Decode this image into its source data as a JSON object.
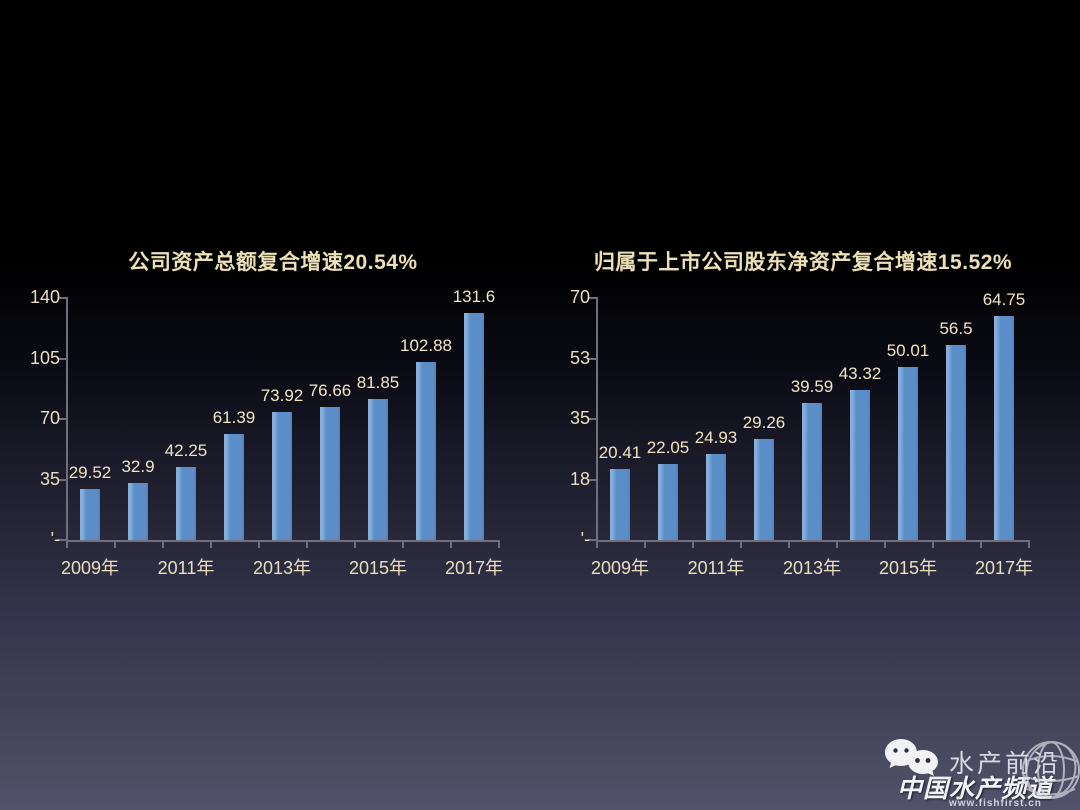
{
  "slide": {
    "background_top_color": "#000000",
    "background_bottom_color": "#52526a",
    "text_color": "#ece0b5",
    "bar_color": "#5b8ec8"
  },
  "chart_data": [
    {
      "type": "bar",
      "title": "公司资产总额复合增速20.54%",
      "values": [
        29.52,
        32.9,
        42.25,
        61.39,
        73.92,
        76.66,
        81.85,
        102.88,
        131.6
      ],
      "value_labels": [
        "29.52",
        "32.9",
        "42.25",
        "61.39",
        "73.92",
        "76.66",
        "81.85",
        "102.88",
        "131.6"
      ],
      "x_tick_labels": [
        "2009年",
        "2011年",
        "2013年",
        "2015年",
        "2017年"
      ],
      "y_tick_labels": [
        "140",
        "105",
        "70",
        "35",
        "'-"
      ],
      "ylim": [
        0,
        140
      ],
      "grid": false,
      "legend": false,
      "bar_color": "#5b8ec8"
    },
    {
      "type": "bar",
      "title": "归属于上市公司股东净资产复合增速15.52%",
      "values": [
        20.41,
        22.05,
        24.93,
        29.26,
        39.59,
        43.32,
        50.01,
        56.5,
        64.75
      ],
      "value_labels": [
        "20.41",
        "22.05",
        "24.93",
        "29.26",
        "39.59",
        "43.32",
        "50.01",
        "56.5",
        "64.75"
      ],
      "x_tick_labels": [
        "2009年",
        "2011年",
        "2013年",
        "2015年",
        "2017年"
      ],
      "y_tick_labels": [
        "70",
        "53",
        "35",
        "18",
        "'-"
      ],
      "ylim": [
        0,
        70
      ],
      "grid": false,
      "legend": false,
      "bar_color": "#5b8ec8"
    }
  ],
  "watermark": {
    "line1": "水产前沿",
    "line2": "中国水产频道",
    "line3": "www.fishfirst.cn",
    "icons": [
      "wechat-icon",
      "globe-icon"
    ]
  }
}
